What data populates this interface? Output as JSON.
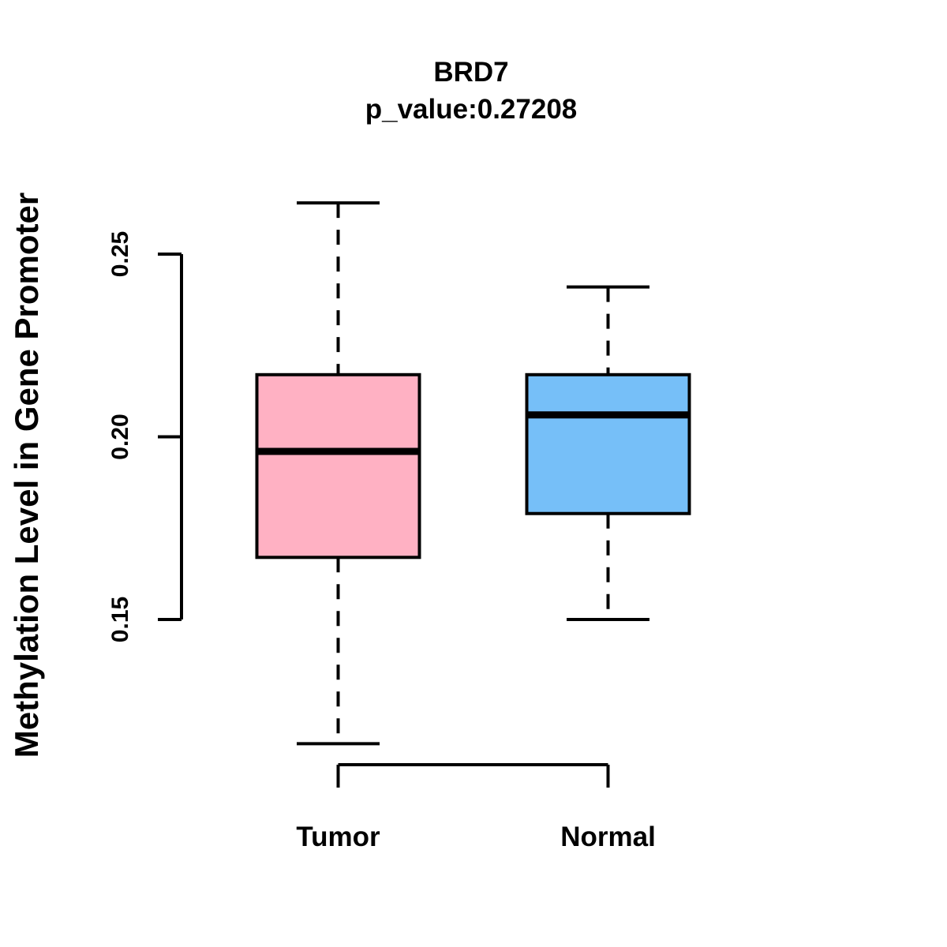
{
  "figure": {
    "background": "#FFFFFF"
  },
  "chart_data": {
    "type": "boxplot",
    "title": "BRD7",
    "subtitle": "p_value:0.27208",
    "ylabel": "Methylation Level in Gene Promoter",
    "xlabel": "",
    "categories": [
      "Tumor",
      "Normal"
    ],
    "y_ticks": [
      "0.15",
      "0.20",
      "0.25"
    ],
    "ylim": [
      0.116,
      0.264
    ],
    "grid": false,
    "legend": "none",
    "series": [
      {
        "name": "Tumor",
        "box_fill": "#FFB1C3",
        "whisker_low": 0.116,
        "q1": 0.167,
        "median": 0.196,
        "q3": 0.217,
        "whisker_high": 0.264
      },
      {
        "name": "Normal",
        "box_fill": "#76BFF8",
        "whisker_low": 0.15,
        "q1": 0.179,
        "median": 0.206,
        "q3": 0.217,
        "whisker_high": 0.241
      }
    ],
    "colors": {
      "stroke": "#000000",
      "text": "#000000"
    }
  }
}
